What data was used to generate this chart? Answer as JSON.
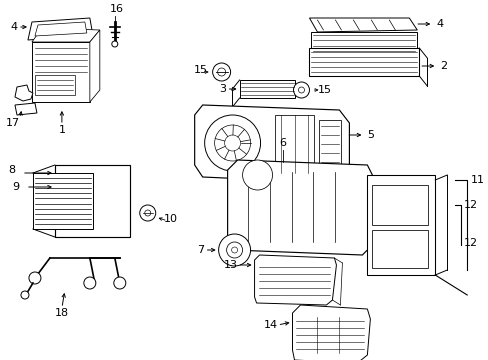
{
  "bg_color": "#ffffff",
  "line_color": "#000000",
  "text_color": "#000000",
  "fig_width": 4.89,
  "fig_height": 3.6,
  "dpi": 100,
  "label_fs": 8,
  "lw": 0.7
}
